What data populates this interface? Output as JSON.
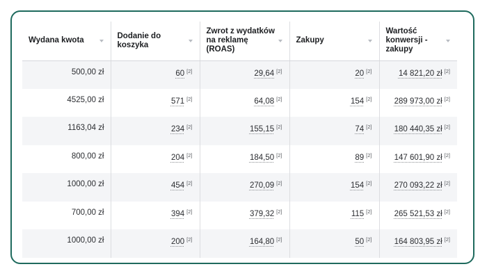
{
  "table": {
    "headers": [
      "Wydana kwota",
      "Dodanie do koszyka",
      "Zwrot z wydatków na reklamę (ROAS)",
      "Zakupy",
      "Wartość konwersji - zakupy"
    ],
    "footnote_marker": "[2]",
    "rows": [
      {
        "spent": "500,00 zł",
        "add_to_cart": "60",
        "roas": "29,64",
        "purchases": "20",
        "conv_value": "14 821,20 zł"
      },
      {
        "spent": "4525,00 zł",
        "add_to_cart": "571",
        "roas": "64,08",
        "purchases": "154",
        "conv_value": "289 973,00 zł"
      },
      {
        "spent": "1163,04 zł",
        "add_to_cart": "234",
        "roas": "155,15",
        "purchases": "74",
        "conv_value": "180 440,35 zł"
      },
      {
        "spent": "800,00 zł",
        "add_to_cart": "204",
        "roas": "184,50",
        "purchases": "89",
        "conv_value": "147 601,90 zł"
      },
      {
        "spent": "1000,00 zł",
        "add_to_cart": "454",
        "roas": "270,09",
        "purchases": "154",
        "conv_value": "270 093,22 zł"
      },
      {
        "spent": "700,00 zł",
        "add_to_cart": "394",
        "roas": "379,32",
        "purchases": "115",
        "conv_value": "265 521,53 zł"
      },
      {
        "spent": "1000,00 zł",
        "add_to_cart": "200",
        "roas": "164,80",
        "purchases": "50",
        "conv_value": "164 803,95 zł"
      }
    ]
  },
  "colors": {
    "card_border": "#1e6a5d",
    "row_alt_bg": "#f4f5f7",
    "divider": "#dcdde0"
  }
}
